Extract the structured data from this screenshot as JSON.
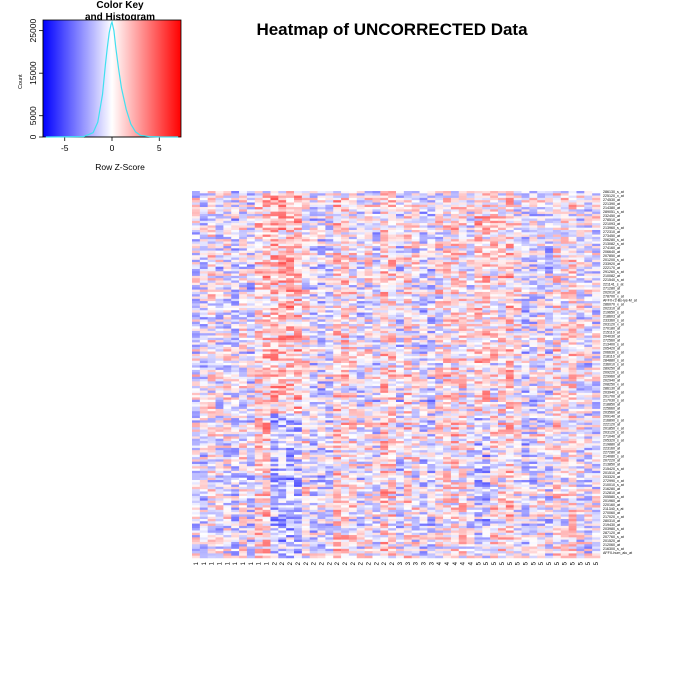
{
  "chart_data": {
    "type": "heatmap",
    "title": "Heatmap of UNCORRECTED Data",
    "color_key": {
      "title_line1": "Color Key",
      "title_line2": "and Histogram",
      "xlabel": "Row Z-Score",
      "ylabel": "Count",
      "x_ticks": [
        "-5",
        "0",
        "5"
      ],
      "x_range": [
        -7.3,
        7.3
      ],
      "y_ticks": [
        "0",
        "5000",
        "15000",
        "25000"
      ],
      "y_range": [
        0,
        27500
      ],
      "colors": {
        "low": "#0000ff",
        "mid": "#ffffff",
        "high": "#ff0000",
        "histogram": "#40e0f0"
      },
      "histogram": {
        "x": [
          -7,
          -3,
          -2,
          -1.5,
          -1,
          -0.7,
          -0.5,
          -0.3,
          -0.1,
          0,
          0.2,
          0.4,
          0.7,
          1,
          1.5,
          2,
          2.5,
          3,
          4,
          5,
          7
        ],
        "y": [
          0,
          100,
          1000,
          3500,
          10000,
          17000,
          21000,
          24500,
          26500,
          27000,
          25000,
          21000,
          16000,
          11500,
          6500,
          3000,
          1200,
          400,
          100,
          20,
          0
        ]
      }
    },
    "columns": [
      "1",
      "1",
      "1",
      "1",
      "1",
      "1",
      "1",
      "1",
      "1",
      "1",
      "2",
      "2",
      "2",
      "2",
      "2",
      "2",
      "2",
      "2",
      "2",
      "2",
      "2",
      "2",
      "2",
      "2",
      "2",
      "2",
      "3",
      "3",
      "3",
      "3",
      "3",
      "4",
      "4",
      "4",
      "4",
      "4",
      "5",
      "5",
      "5",
      "5",
      "5",
      "5",
      "5",
      "5",
      "5",
      "5",
      "5",
      "5",
      "5",
      "5",
      "5",
      "5"
    ],
    "row_labels": [
      "286130_s_at",
      "225120_x_at",
      "274530_at",
      "221390_at",
      "214380_at",
      "289051_s_at",
      "232450_at",
      "278510_at",
      "221093_at",
      "213960_s_at",
      "272310_at",
      "273450_at",
      "206280_s_at",
      "213082_s_at",
      "274160_at",
      "206640_at",
      "207850_at",
      "201200_s_at",
      "233920_at",
      "222170_at",
      "291260_s_at",
      "210082_at",
      "221540_s_at",
      "221141_s_at",
      "271280_at",
      "202010_at",
      "278700_x_at",
      "AFFX-r2-Bs-lys-M_at",
      "286070_x_at",
      "202310_at",
      "219650_s_at",
      "218603_at",
      "233360_s_at",
      "203120_x_at",
      "270180_at",
      "215110_at",
      "204030_at",
      "272560_at",
      "213400_s_at",
      "205420_at",
      "206630_s_at",
      "218110_at",
      "284880_s_at",
      "236010_s_at",
      "289250_at",
      "209220_s_at",
      "229960_at",
      "202940_at",
      "208250_x_at",
      "286130_at",
      "203940_s_at",
      "201700_at",
      "217030_s_at",
      "218850_at",
      "225660_at",
      "203560_at",
      "209140_at",
      "216890_s_at",
      "222120_at",
      "201850_x_at",
      "203120_s_at",
      "271040_at",
      "205320_s_at",
      "219880_at",
      "223160_at",
      "227280_at",
      "214080_s_at",
      "207220_at",
      "213850_at",
      "215420_s_at",
      "201510_at",
      "203320_at",
      "272990_x_at",
      "210010_s_at",
      "216280_at",
      "212810_at",
      "205580_s_at",
      "201960_at",
      "220160_at",
      "211340_s_at",
      "270060_at",
      "217020_x_at",
      "280310_at",
      "219430_at",
      "203980_s_at",
      "287120_at",
      "207760_s_at",
      "201520_at",
      "212060_at",
      "216300_s_at",
      "AFFX-hum_alu_at"
    ]
  }
}
